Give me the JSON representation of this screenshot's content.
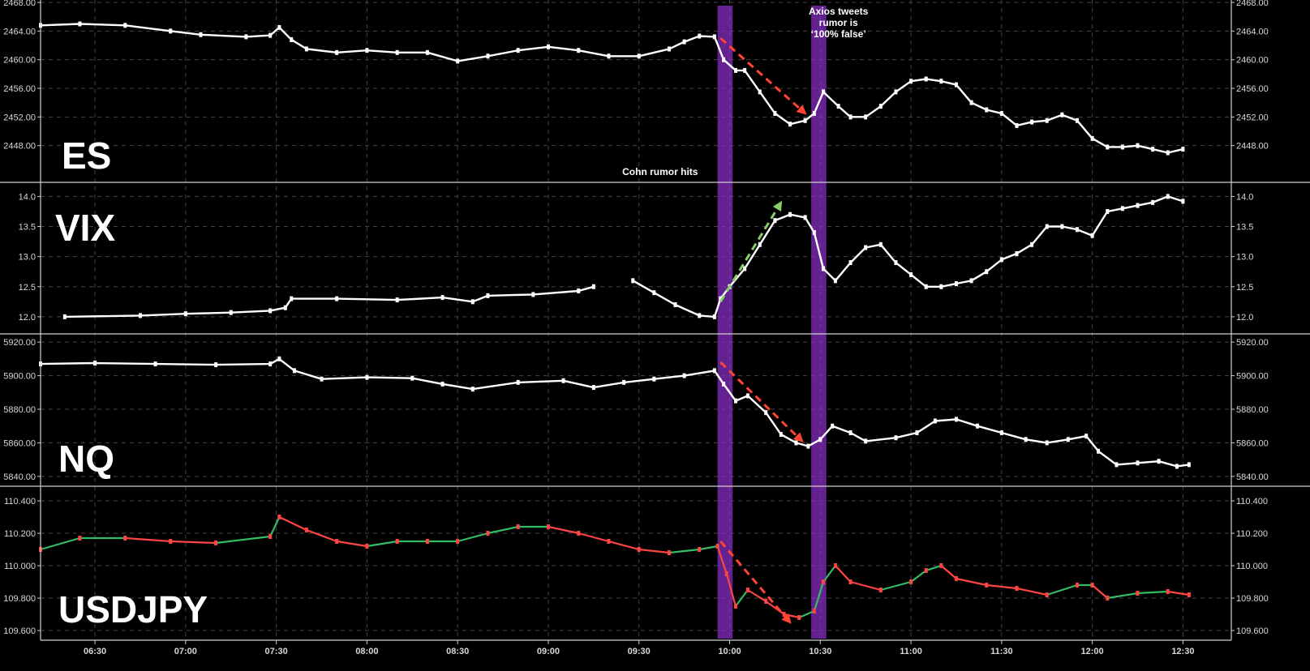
{
  "chart_data": {
    "type": "line",
    "style": "candlestick",
    "x_axis": {
      "ticks": [
        "06:30",
        "07:00",
        "07:30",
        "08:00",
        "08:30",
        "09:00",
        "09:30",
        "10:00",
        "10:30",
        "11:00",
        "11:30",
        "12:00",
        "12:30"
      ],
      "start": "06:12",
      "end": "12:46"
    },
    "highlight_bands": [
      {
        "start": "09:56",
        "end": "10:01"
      },
      {
        "start": "10:27",
        "end": "10:32"
      }
    ],
    "annotations": [
      {
        "text_lines": [
          "Axios tweets",
          "rumor is",
          "‘100% false’"
        ],
        "time": "10:36",
        "panel": 0
      },
      {
        "text_lines": [
          "Cohn rumor hits"
        ],
        "time": "09:37",
        "panel": 0
      }
    ],
    "panels": [
      {
        "symbol": "ES",
        "ylim": [
          2444.0,
          2468.0
        ],
        "y_ticks": [
          "2448.00",
          "2452.00",
          "2456.00",
          "2460.00",
          "2464.00",
          "2468.00"
        ],
        "series_color": "#ffffff",
        "points": [
          [
            "06:12",
            2464.8
          ],
          [
            "06:25",
            2465.0
          ],
          [
            "06:40",
            2464.8
          ],
          [
            "06:55",
            2464.0
          ],
          [
            "07:05",
            2463.5
          ],
          [
            "07:20",
            2463.2
          ],
          [
            "07:28",
            2463.4
          ],
          [
            "07:31",
            2464.5
          ],
          [
            "07:35",
            2462.8
          ],
          [
            "07:40",
            2461.5
          ],
          [
            "07:50",
            2461.0
          ],
          [
            "08:00",
            2461.3
          ],
          [
            "08:10",
            2461.0
          ],
          [
            "08:20",
            2461.0
          ],
          [
            "08:30",
            2459.8
          ],
          [
            "08:40",
            2460.5
          ],
          [
            "08:50",
            2461.3
          ],
          [
            "09:00",
            2461.8
          ],
          [
            "09:10",
            2461.3
          ],
          [
            "09:20",
            2460.5
          ],
          [
            "09:30",
            2460.5
          ],
          [
            "09:40",
            2461.5
          ],
          [
            "09:45",
            2462.5
          ],
          [
            "09:50",
            2463.3
          ],
          [
            "09:55",
            2463.2
          ],
          [
            "09:58",
            2460.0
          ],
          [
            "10:02",
            2458.5
          ],
          [
            "10:05",
            2458.5
          ],
          [
            "10:10",
            2455.5
          ],
          [
            "10:15",
            2452.5
          ],
          [
            "10:20",
            2451.0
          ],
          [
            "10:25",
            2451.5
          ],
          [
            "10:28",
            2452.5
          ],
          [
            "10:31",
            2455.5
          ],
          [
            "10:36",
            2453.5
          ],
          [
            "10:40",
            2452.0
          ],
          [
            "10:45",
            2452.0
          ],
          [
            "10:50",
            2453.5
          ],
          [
            "10:55",
            2455.5
          ],
          [
            "11:00",
            2457.0
          ],
          [
            "11:05",
            2457.3
          ],
          [
            "11:10",
            2457.0
          ],
          [
            "11:15",
            2456.5
          ],
          [
            "11:20",
            2454.0
          ],
          [
            "11:25",
            2453.0
          ],
          [
            "11:30",
            2452.5
          ],
          [
            "11:35",
            2450.8
          ],
          [
            "11:40",
            2451.3
          ],
          [
            "11:45",
            2451.5
          ],
          [
            "11:50",
            2452.3
          ],
          [
            "11:55",
            2451.5
          ],
          [
            "12:00",
            2449.0
          ],
          [
            "12:05",
            2447.8
          ],
          [
            "12:10",
            2447.8
          ],
          [
            "12:15",
            2448.0
          ],
          [
            "12:20",
            2447.5
          ],
          [
            "12:25",
            2447.0
          ],
          [
            "12:30",
            2447.5
          ]
        ],
        "trend_arrows": [
          {
            "from": [
              "09:57",
              2463.0
            ],
            "to": [
              "10:25",
              2452.5
            ],
            "color": "#ff4433"
          }
        ]
      },
      {
        "symbol": "VIX",
        "ylim": [
          11.85,
          14.1
        ],
        "y_ticks": [
          "12.0",
          "12.5",
          "13.0",
          "13.5",
          "14.0"
        ],
        "series_color": "#ffffff",
        "points": [
          [
            "06:20",
            12.0
          ],
          [
            "06:45",
            12.02
          ],
          [
            "07:00",
            12.05
          ],
          [
            "07:15",
            12.07
          ],
          [
            "07:28",
            12.1
          ],
          [
            "07:33",
            12.15
          ],
          [
            "07:35",
            12.3
          ],
          [
            "07:50",
            12.3
          ],
          [
            "08:10",
            12.28
          ],
          [
            "08:25",
            12.32
          ],
          [
            "08:35",
            12.25
          ],
          [
            "08:40",
            12.35
          ],
          [
            "08:55",
            12.37
          ],
          [
            "09:10",
            12.43
          ],
          [
            "09:15",
            12.5
          ],
          null,
          [
            "09:28",
            12.6
          ],
          [
            "09:35",
            12.4
          ],
          [
            "09:42",
            12.2
          ],
          [
            "09:50",
            12.02
          ],
          [
            "09:55",
            12.0
          ],
          [
            "09:57",
            12.3
          ],
          [
            "10:00",
            12.5
          ],
          [
            "10:05",
            12.8
          ],
          [
            "10:10",
            13.2
          ],
          [
            "10:15",
            13.6
          ],
          [
            "10:20",
            13.7
          ],
          [
            "10:25",
            13.65
          ],
          [
            "10:28",
            13.4
          ],
          [
            "10:31",
            12.8
          ],
          [
            "10:35",
            12.6
          ],
          [
            "10:40",
            12.9
          ],
          [
            "10:45",
            13.15
          ],
          [
            "10:50",
            13.2
          ],
          [
            "10:55",
            12.9
          ],
          [
            "11:00",
            12.7
          ],
          [
            "11:05",
            12.5
          ],
          [
            "11:10",
            12.5
          ],
          [
            "11:15",
            12.55
          ],
          [
            "11:20",
            12.6
          ],
          [
            "11:25",
            12.75
          ],
          [
            "11:30",
            12.95
          ],
          [
            "11:35",
            13.05
          ],
          [
            "11:40",
            13.2
          ],
          [
            "11:45",
            13.5
          ],
          [
            "11:50",
            13.5
          ],
          [
            "11:55",
            13.45
          ],
          [
            "12:00",
            13.35
          ],
          [
            "12:05",
            13.75
          ],
          [
            "12:10",
            13.8
          ],
          [
            "12:15",
            13.85
          ],
          [
            "12:20",
            13.9
          ],
          [
            "12:25",
            14.0
          ],
          [
            "12:30",
            13.92
          ]
        ],
        "trend_arrows": [
          {
            "from": [
              "09:57",
              12.25
            ],
            "to": [
              "10:17",
              13.9
            ],
            "color": "#88cc66"
          }
        ]
      },
      {
        "symbol": "NQ",
        "ylim": [
          5838.0,
          5922.0
        ],
        "y_ticks": [
          "5840.00",
          "5860.00",
          "5880.00",
          "5900.00",
          "5920.00"
        ],
        "series_color": "#ffffff",
        "points": [
          [
            "06:12",
            5907.0
          ],
          [
            "06:30",
            5907.5
          ],
          [
            "06:50",
            5907.0
          ],
          [
            "07:10",
            5906.5
          ],
          [
            "07:28",
            5907.0
          ],
          [
            "07:31",
            5910.0
          ],
          [
            "07:36",
            5903.0
          ],
          [
            "07:45",
            5898.0
          ],
          [
            "08:00",
            5899.0
          ],
          [
            "08:15",
            5898.5
          ],
          [
            "08:25",
            5895.0
          ],
          [
            "08:35",
            5892.0
          ],
          [
            "08:50",
            5896.0
          ],
          [
            "09:05",
            5897.0
          ],
          [
            "09:15",
            5893.0
          ],
          [
            "09:25",
            5896.0
          ],
          [
            "09:35",
            5898.0
          ],
          [
            "09:45",
            5900.0
          ],
          [
            "09:55",
            5903.0
          ],
          [
            "09:58",
            5895.0
          ],
          [
            "10:02",
            5885.0
          ],
          [
            "10:06",
            5888.0
          ],
          [
            "10:12",
            5878.0
          ],
          [
            "10:17",
            5865.0
          ],
          [
            "10:22",
            5860.0
          ],
          [
            "10:26",
            5858.0
          ],
          [
            "10:30",
            5862.0
          ],
          [
            "10:34",
            5870.0
          ],
          [
            "10:40",
            5866.0
          ],
          [
            "10:45",
            5861.0
          ],
          [
            "10:55",
            5863.0
          ],
          [
            "11:02",
            5866.0
          ],
          [
            "11:08",
            5873.0
          ],
          [
            "11:15",
            5874.0
          ],
          [
            "11:22",
            5870.0
          ],
          [
            "11:30",
            5866.0
          ],
          [
            "11:38",
            5862.0
          ],
          [
            "11:45",
            5860.0
          ],
          [
            "11:52",
            5862.0
          ],
          [
            "11:58",
            5864.0
          ],
          [
            "12:02",
            5855.0
          ],
          [
            "12:08",
            5847.0
          ],
          [
            "12:15",
            5848.0
          ],
          [
            "12:22",
            5849.0
          ],
          [
            "12:28",
            5846.0
          ],
          [
            "12:32",
            5847.0
          ]
        ],
        "trend_arrows": [
          {
            "from": [
              "09:57",
              5908.0
            ],
            "to": [
              "10:24",
              5861.0
            ],
            "color": "#ff4433"
          }
        ]
      },
      {
        "symbol": "USDJPY",
        "ylim": [
          109.57,
          110.45
        ],
        "y_ticks": [
          "109.600",
          "109.800",
          "110.000",
          "110.200",
          "110.400"
        ],
        "series_color": "#ff4444",
        "series_color_alt": "#33bb66",
        "points": [
          [
            "06:12",
            110.1
          ],
          [
            "06:25",
            110.17
          ],
          [
            "06:40",
            110.17
          ],
          [
            "06:55",
            110.15
          ],
          [
            "07:10",
            110.14
          ],
          [
            "07:28",
            110.18
          ],
          [
            "07:31",
            110.3
          ],
          [
            "07:40",
            110.22
          ],
          [
            "07:50",
            110.15
          ],
          [
            "08:00",
            110.12
          ],
          [
            "08:10",
            110.15
          ],
          [
            "08:20",
            110.15
          ],
          [
            "08:30",
            110.15
          ],
          [
            "08:40",
            110.2
          ],
          [
            "08:50",
            110.24
          ],
          [
            "09:00",
            110.24
          ],
          [
            "09:10",
            110.2
          ],
          [
            "09:20",
            110.15
          ],
          [
            "09:30",
            110.1
          ],
          [
            "09:40",
            110.08
          ],
          [
            "09:50",
            110.1
          ],
          [
            "09:56",
            110.12
          ],
          [
            "09:59",
            109.95
          ],
          [
            "10:02",
            109.75
          ],
          [
            "10:06",
            109.85
          ],
          [
            "10:12",
            109.78
          ],
          [
            "10:18",
            109.7
          ],
          [
            "10:23",
            109.68
          ],
          [
            "10:28",
            109.72
          ],
          [
            "10:31",
            109.9
          ],
          [
            "10:35",
            110.0
          ],
          [
            "10:40",
            109.9
          ],
          [
            "10:50",
            109.85
          ],
          [
            "11:00",
            109.9
          ],
          [
            "11:05",
            109.97
          ],
          [
            "11:10",
            110.0
          ],
          [
            "11:15",
            109.92
          ],
          [
            "11:25",
            109.88
          ],
          [
            "11:35",
            109.86
          ],
          [
            "11:45",
            109.82
          ],
          [
            "11:55",
            109.88
          ],
          [
            "12:00",
            109.88
          ],
          [
            "12:05",
            109.8
          ],
          [
            "12:15",
            109.83
          ],
          [
            "12:25",
            109.84
          ],
          [
            "12:32",
            109.82
          ]
        ],
        "trend_arrows": [
          {
            "from": [
              "09:57",
              110.15
            ],
            "to": [
              "10:20",
              109.65
            ],
            "color": "#ff4433"
          }
        ]
      }
    ]
  }
}
